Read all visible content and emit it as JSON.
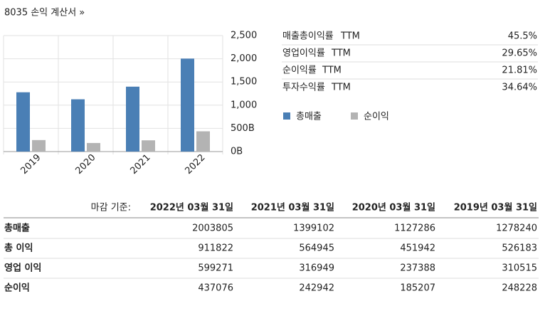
{
  "header": {
    "title": "8035 손익 계산서 »"
  },
  "chart_data": {
    "type": "bar",
    "categories": [
      "2019",
      "2020",
      "2021",
      "2022"
    ],
    "series": [
      {
        "name": "총매출",
        "color": "#4a7fb5",
        "values": [
          1278.24,
          1127.286,
          1399.102,
          2003.805
        ]
      },
      {
        "name": "순이익",
        "color": "#b3b3b3",
        "values": [
          248.228,
          185.207,
          242.942,
          437.076
        ]
      }
    ],
    "ylim": [
      0,
      2500
    ],
    "yticks": [
      {
        "value": 0,
        "label": "0B"
      },
      {
        "value": 500,
        "label": "500B"
      },
      {
        "value": 1000,
        "label": "1,000"
      },
      {
        "value": 1500,
        "label": "1,500"
      },
      {
        "value": 2000,
        "label": "2,000"
      },
      {
        "value": 2500,
        "label": "2,500"
      }
    ],
    "grid": true
  },
  "ratios": [
    {
      "name": "매출총이익률",
      "ttm": "TTM",
      "value": "45.5%"
    },
    {
      "name": "영업이익률",
      "ttm": "TTM",
      "value": "29.65%"
    },
    {
      "name": "순이익률",
      "ttm": "TTM",
      "value": "21.81%"
    },
    {
      "name": "투자수익률",
      "ttm": "TTM",
      "value": "34.64%"
    }
  ],
  "table": {
    "basis": "마감 기준:",
    "columns": [
      "2022년 03월 31일",
      "2021년 03월 31일",
      "2020년 03월 31일",
      "2019년 03월 31일"
    ],
    "rows": [
      [
        "총매출",
        2003805,
        1399102,
        1127286,
        1278240
      ],
      [
        "총 이익",
        911822,
        564945,
        451942,
        526183
      ],
      [
        "영업 이익",
        599271,
        316949,
        237388,
        310515
      ],
      [
        "순이익",
        437076,
        242942,
        185207,
        248228
      ]
    ]
  }
}
